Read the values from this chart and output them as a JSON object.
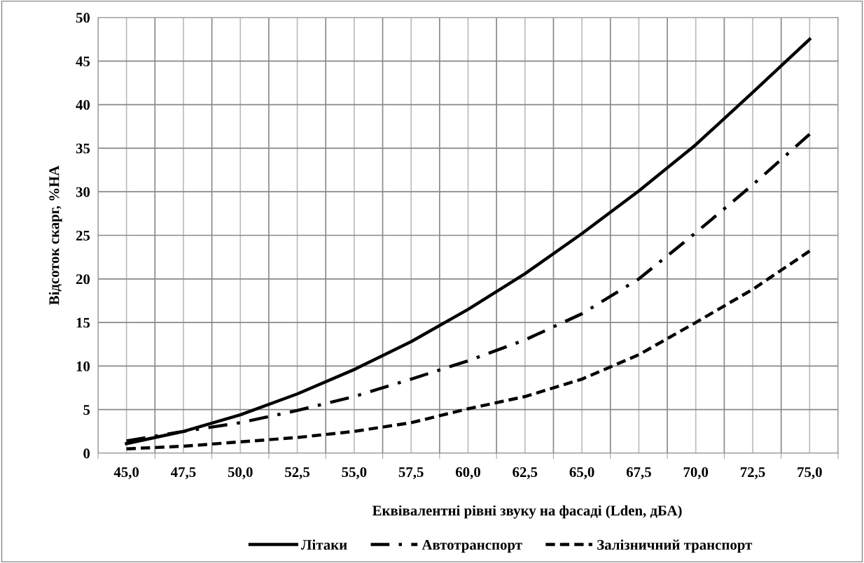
{
  "chart_data": {
    "type": "line",
    "xlabel": "Еквівалентні рівні звуку на фасаді (Lden, дБА)",
    "ylabel": "Відсоток скарг, %HA",
    "categories": [
      "45,0",
      "47,5",
      "50,0",
      "52,5",
      "55,0",
      "57,5",
      "60,0",
      "62,5",
      "65,0",
      "67,5",
      "70,0",
      "72,5",
      "75,0"
    ],
    "series": [
      {
        "name": "Літаки",
        "color": "#000000",
        "line_style": "solid",
        "values": [
          1.1,
          2.5,
          4.4,
          6.8,
          9.6,
          12.8,
          16.5,
          20.6,
          25.2,
          30.1,
          35.4,
          41.4,
          47.5
        ]
      },
      {
        "name": "Автотранспорт",
        "color": "#000000",
        "line_style": "dashdot",
        "values": [
          1.4,
          2.5,
          3.5,
          4.9,
          6.5,
          8.5,
          10.6,
          13.0,
          16.0,
          20.0,
          25.3,
          30.8,
          36.6
        ]
      },
      {
        "name": "Залізничний транспорт",
        "color": "#000000",
        "line_style": "dashed",
        "values": [
          0.5,
          0.8,
          1.3,
          1.8,
          2.5,
          3.5,
          5.1,
          6.5,
          8.5,
          11.3,
          15.0,
          18.8,
          23.2
        ]
      }
    ],
    "ylim": [
      0,
      50
    ],
    "yticks": [
      0,
      5,
      10,
      15,
      20,
      25,
      30,
      35,
      40,
      45,
      50
    ],
    "grid": true,
    "legend": "bottom",
    "marker": "none"
  }
}
